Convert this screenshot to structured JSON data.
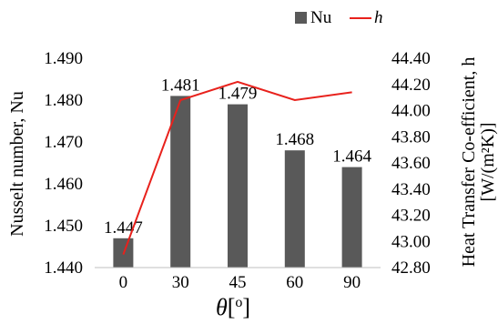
{
  "chart_data": {
    "type": "bar+line",
    "categories": [
      "0",
      "30",
      "45",
      "60",
      "90"
    ],
    "series": [
      {
        "name": "Nu",
        "type": "bar",
        "axis": "left",
        "values": [
          1.447,
          1.481,
          1.479,
          1.468,
          1.464
        ],
        "labels": [
          "1.447",
          "1.481",
          "1.479",
          "1.468",
          "1.464"
        ],
        "color": "#595959"
      },
      {
        "name": "h",
        "type": "line",
        "axis": "right",
        "values": [
          42.9,
          44.08,
          44.22,
          44.08,
          44.14
        ],
        "color": "#e8211c"
      }
    ],
    "xlabel_symbol": "θ",
    "xlabel_unit": "[",
    "xlabel_unit_sup": "o",
    "xlabel_unit_close": "]",
    "ylabel_left": "Nusselt number, Nu",
    "ylabel_right_line1": "Heat Transfer Co-efficient, h",
    "ylabel_right_line2": "[W/(m²K)]",
    "ylim_left": [
      1.44,
      1.49
    ],
    "yticks_left": [
      "1.490",
      "1.480",
      "1.470",
      "1.460",
      "1.450",
      "1.440"
    ],
    "ylim_right": [
      42.8,
      44.4
    ],
    "yticks_right": [
      "44.40",
      "44.20",
      "44.00",
      "43.80",
      "43.60",
      "43.40",
      "43.20",
      "43.00",
      "42.80"
    ],
    "grid": false,
    "legend_position": "top-right"
  }
}
